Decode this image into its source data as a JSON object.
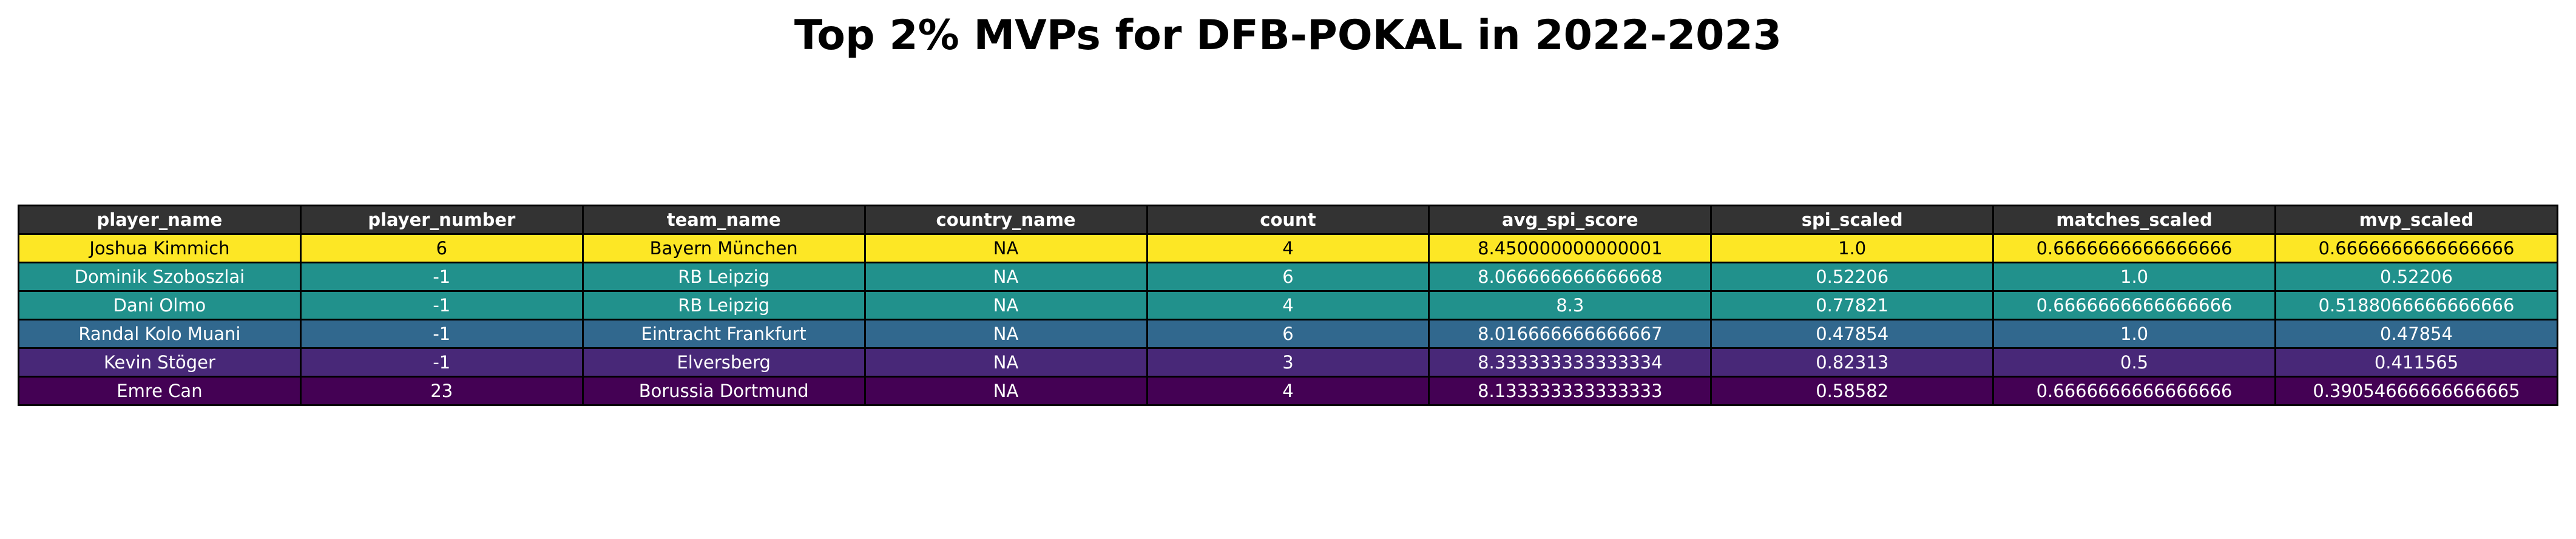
{
  "chart_data": {
    "type": "table",
    "title": "Top 2% MVPs for DFB-POKAL in 2022-2023",
    "columns": [
      "player_name",
      "player_number",
      "team_name",
      "country_name",
      "count",
      "avg_spi_score",
      "spi_scaled",
      "matches_scaled",
      "mvp_scaled"
    ],
    "rows": [
      [
        "Joshua Kimmich",
        "6",
        "Bayern München",
        "NA",
        "4",
        "8.450000000000001",
        "1.0",
        "0.6666666666666666",
        "0.6666666666666666"
      ],
      [
        "Dominik Szoboszlai",
        "-1",
        "RB Leipzig",
        "NA",
        "6",
        "8.066666666666668",
        "0.52206",
        "1.0",
        "0.52206"
      ],
      [
        "Dani Olmo",
        "-1",
        "RB Leipzig",
        "NA",
        "4",
        "8.3",
        "0.77821",
        "0.6666666666666666",
        "0.5188066666666666"
      ],
      [
        "Randal Kolo Muani",
        "-1",
        "Eintracht Frankfurt",
        "NA",
        "6",
        "8.016666666666667",
        "0.47854",
        "1.0",
        "0.47854"
      ],
      [
        "Kevin Stöger",
        "-1",
        "Elversberg",
        "NA",
        "3",
        "8.333333333333334",
        "0.82313",
        "0.5",
        "0.411565"
      ],
      [
        "Emre Can",
        "23",
        "Borussia Dortmund",
        "NA",
        "4",
        "8.133333333333333",
        "0.58582",
        "0.6666666666666666",
        "0.39054666666666665"
      ]
    ],
    "row_colors": [
      "#fde725",
      "#21918c",
      "#21918c",
      "#31688e",
      "#482878",
      "#440154"
    ],
    "row_text_colors": [
      "#000000",
      "#ffffff",
      "#ffffff",
      "#ffffff",
      "#ffffff",
      "#ffffff"
    ],
    "header_color": "#333333",
    "header_text_color": "#ffffff"
  }
}
